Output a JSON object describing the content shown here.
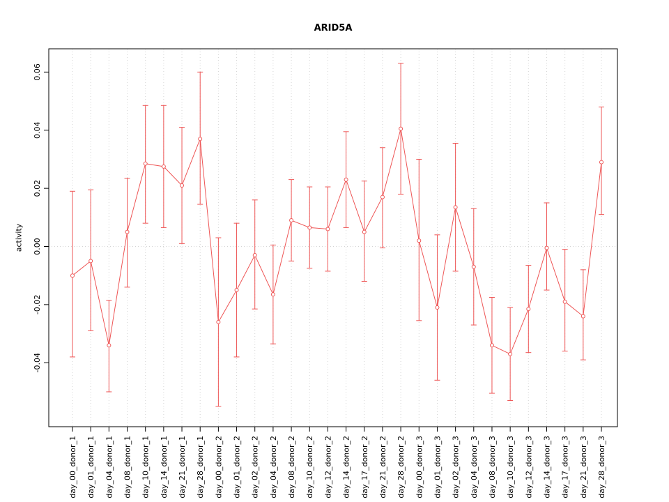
{
  "chart_data": {
    "type": "line",
    "title": "ARID5A",
    "xlabel": "",
    "ylabel": "activity",
    "legend": "none",
    "grid": "dotted vertical line at each category and dotted horizontal line at zero",
    "marker": "open-circle",
    "error_bars": true,
    "ylim": [
      -0.062,
      0.068
    ],
    "yticks": [
      -0.04,
      -0.02,
      0.0,
      0.02,
      0.04,
      0.06
    ],
    "categories": [
      "day_00_donor_1",
      "day_01_donor_1",
      "day_04_donor_1",
      "day_08_donor_1",
      "day_10_donor_1",
      "day_14_donor_1",
      "day_21_donor_1",
      "day_28_donor_1",
      "day_00_donor_2",
      "day_01_donor_2",
      "day_02_donor_2",
      "day_04_donor_2",
      "day_08_donor_2",
      "day_10_donor_2",
      "day_12_donor_2",
      "day_14_donor_2",
      "day_17_donor_2",
      "day_21_donor_2",
      "day_28_donor_2",
      "day_00_donor_3",
      "day_01_donor_3",
      "day_02_donor_3",
      "day_04_donor_3",
      "day_08_donor_3",
      "day_10_donor_3",
      "day_12_donor_3",
      "day_14_donor_3",
      "day_17_donor_3",
      "day_21_donor_3",
      "day_28_donor_3"
    ],
    "values": [
      -0.01,
      -0.005,
      -0.034,
      0.005,
      0.0285,
      0.0275,
      0.021,
      0.037,
      -0.026,
      -0.015,
      -0.003,
      -0.0165,
      0.009,
      0.0065,
      0.006,
      0.023,
      0.005,
      0.017,
      0.0405,
      0.002,
      -0.021,
      0.0135,
      -0.007,
      -0.034,
      -0.037,
      -0.0215,
      -0.0005,
      -0.019,
      -0.024,
      0.029
    ],
    "error_low": [
      -0.038,
      -0.029,
      -0.05,
      -0.014,
      0.008,
      0.0065,
      0.001,
      0.0145,
      -0.055,
      -0.038,
      -0.0215,
      -0.0335,
      -0.005,
      -0.0075,
      -0.0085,
      0.0065,
      -0.012,
      -0.0005,
      0.018,
      -0.0255,
      -0.046,
      -0.0085,
      -0.027,
      -0.0505,
      -0.053,
      -0.0365,
      -0.015,
      -0.036,
      -0.039,
      0.011
    ],
    "error_high": [
      0.019,
      0.0195,
      -0.0185,
      0.0235,
      0.0485,
      0.0485,
      0.041,
      0.06,
      0.003,
      0.008,
      0.016,
      0.0005,
      0.023,
      0.0205,
      0.0205,
      0.0395,
      0.0225,
      0.034,
      0.063,
      0.03,
      0.004,
      0.0355,
      0.013,
      -0.0175,
      -0.021,
      -0.0065,
      0.015,
      -0.001,
      -0.008,
      0.048
    ],
    "colors": {
      "series": "#ee5555",
      "grid": "#d4d4d4",
      "axis": "#000000",
      "background": "#ffffff"
    }
  }
}
